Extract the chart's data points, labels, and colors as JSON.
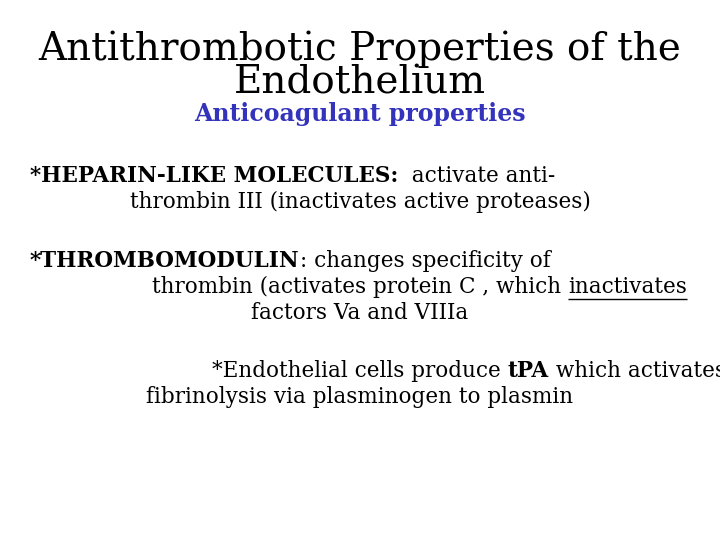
{
  "title_line1": "Antithrombotic Properties of the",
  "title_line2": "Endothelium",
  "subtitle": "Anticoagulant properties",
  "subtitle_color": "#3333bb",
  "background_color": "#ffffff",
  "title_fontsize": 28,
  "subtitle_fontsize": 17,
  "body_fontsize": 15.5,
  "font": "DejaVu Serif",
  "block1_bold": "*HEPARIN-LIKE MOLECULES:",
  "block1_normal": "  activate anti-",
  "block1_line2": "thrombin III (inactivates active proteases)",
  "block2_bold": "*THROMBOMODULIN",
  "block2_normal": ": changes specificity of",
  "block2_line2_before": "thrombin (activates protein C , which ",
  "block2_underline": "inactivates",
  "block2_line3": "factors Va and VIIIa",
  "block3_normal1": "*Endothelial cells produce ",
  "block3_bold": "tPA",
  "block3_normal2": " which activates",
  "block3_line2": "fibrinolysis via plasminogen to plasmin"
}
